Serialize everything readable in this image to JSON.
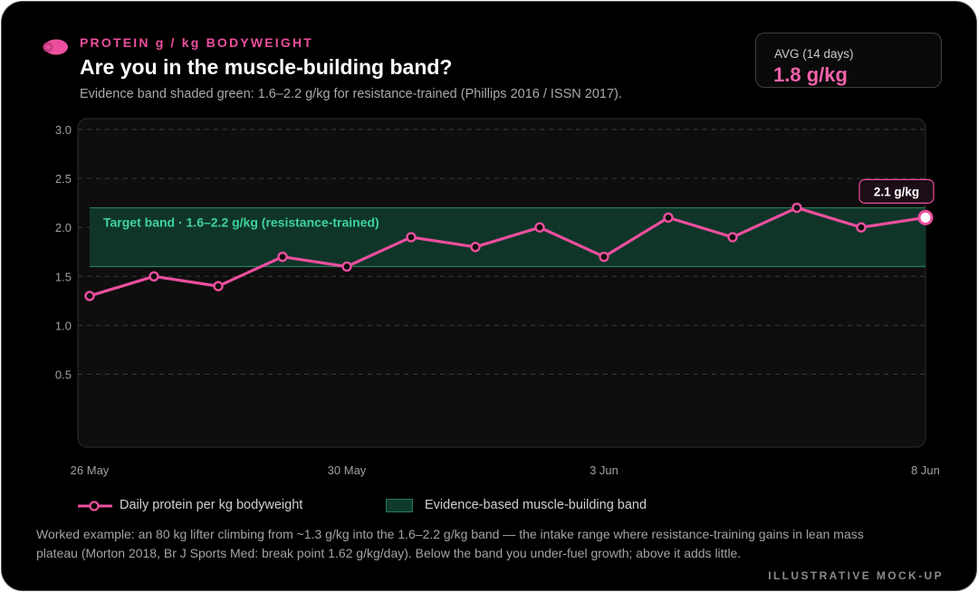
{
  "header": {
    "eyebrow": "PROTEIN g / kg BODYWEIGHT",
    "title": "Are you in the muscle-building band?",
    "subtitle": "Evidence band shaded green: 1.6–2.2 g/kg for resistance-trained (Phillips 2016 / ISSN 2017)."
  },
  "summary": {
    "label": "AVG (14 days)",
    "value": "1.8 g/kg"
  },
  "colors": {
    "accent": "#ec4f9e",
    "band_fill": "#0f3a2c",
    "band_edge": "#2a7a5b",
    "band_text": "#3ed39a"
  },
  "chart_data": {
    "type": "line",
    "x": [
      "26 May",
      "27 May",
      "28 May",
      "29 May",
      "30 May",
      "31 May",
      "1 Jun",
      "2 Jun",
      "3 Jun",
      "4 Jun",
      "5 Jun",
      "6 Jun",
      "7 Jun",
      "8 Jun"
    ],
    "xticks": [
      "26 May",
      "30 May",
      "3 Jun",
      "8 Jun"
    ],
    "series": [
      {
        "name": "Daily protein per kg bodyweight",
        "values": [
          1.3,
          1.5,
          1.4,
          1.7,
          1.6,
          1.9,
          1.8,
          2.0,
          1.7,
          2.1,
          1.9,
          2.2,
          2.0,
          2.1
        ]
      }
    ],
    "yticks": [
      "0.5",
      "1.0",
      "1.5",
      "2.0",
      "2.5",
      "3.0"
    ],
    "ylim": [
      0,
      3.0
    ],
    "band": {
      "low": 1.6,
      "high": 2.2,
      "label": "Target band · 1.6–2.2 g/kg (resistance-trained)"
    },
    "last_point_label": "2.1 g/kg",
    "grid": true
  },
  "legend": {
    "line_label": "Daily protein per kg bodyweight",
    "band_label": "Evidence-based muscle-building band"
  },
  "footer": {
    "note": "Worked example: an 80 kg lifter climbing from ~1.3 g/kg into the 1.6–2.2 g/kg band — the intake range where resistance-training gains in lean mass plateau (Morton 2018, Br J Sports Med: break point 1.62 g/kg/day). Below the band you under-fuel growth; above it adds little.",
    "tag": "ILLUSTRATIVE MOCK-UP"
  }
}
